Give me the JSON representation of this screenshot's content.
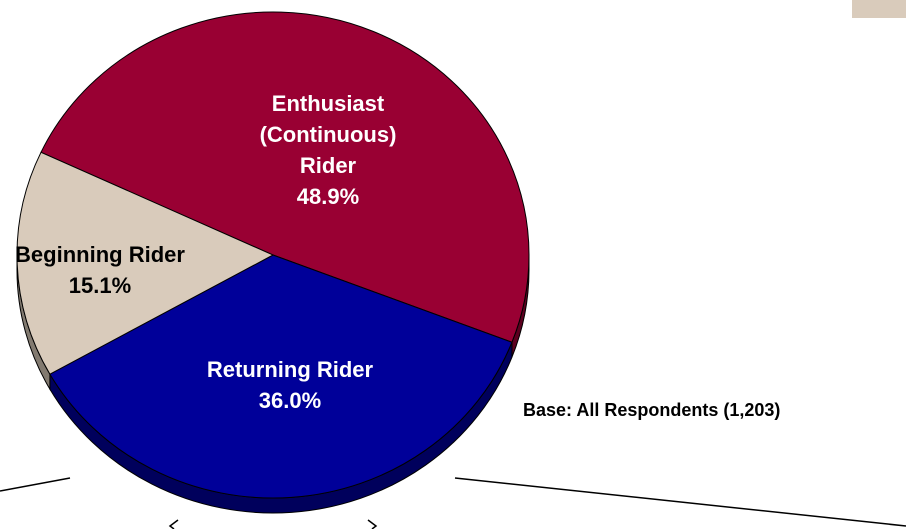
{
  "chart_data": {
    "type": "pie",
    "categories": [
      "Enthusiast (Continuous) Rider",
      "Returning Rider",
      "Beginning Rider"
    ],
    "values": [
      48.9,
      36.0,
      15.1
    ],
    "value_labels": [
      "48.9%",
      "36.0%",
      "15.1%"
    ],
    "colors": [
      "#990033",
      "#000099",
      "#d9cbbb"
    ],
    "label_colors": [
      "#ffffff",
      "#ffffff",
      "#000000"
    ],
    "annotation": "Base: All Respondents (1,203)"
  }
}
